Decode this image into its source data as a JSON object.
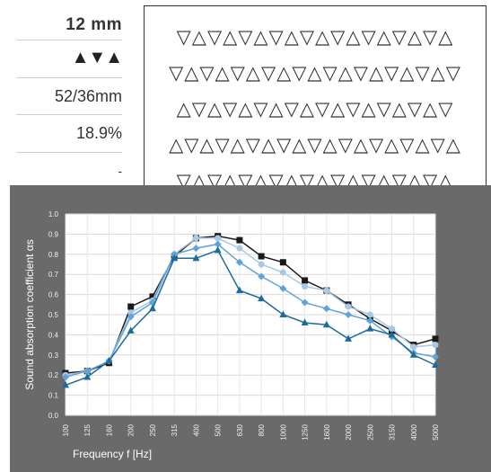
{
  "spec": {
    "thickness": "12  mm",
    "pattern_icon": "▲▼▲",
    "dimensions": "52/36mm",
    "open_area": "18.9%",
    "extra": "-"
  },
  "pattern": {
    "rows": [
      "▽△▽△▽△▽△▽△▽△▽△▽△▽△",
      "▽△▽△▽△▽△▽△▽△▽△▽△▽△▽",
      "△▽△▽△▽△▽△▽△▽△▽△▽△▽",
      "△▽△▽△▽△▽△▽△▽△▽△▽△▽△",
      "▽△▽△▽△▽△▽△▽△▽△▽△▽△"
    ]
  },
  "colors": {
    "panel_bg": "#6a6a6a",
    "plot_bg": "#ffffff",
    "series": [
      "#1a1a1a",
      "#a9c8e6",
      "#5fa3d8",
      "#1d6b9a"
    ]
  },
  "chart_data": {
    "type": "line",
    "xlabel": "Frequency f [Hz]",
    "ylabel": "Sound absorption coefficient αs",
    "ylim": [
      0,
      1
    ],
    "yticks": [
      "0.0",
      "0.1",
      "0.2",
      "0.3",
      "0.4",
      "0.5",
      "0.6",
      "0.7",
      "0.8",
      "0.9",
      "1.0"
    ],
    "categories": [
      "100",
      "125",
      "160",
      "200",
      "250",
      "315",
      "400",
      "500",
      "630",
      "800",
      "1000",
      "1250",
      "1600",
      "2000",
      "2500",
      "3150",
      "4000",
      "5000"
    ],
    "grid": true,
    "series": [
      {
        "marker": "square",
        "color": "#1a1a1a",
        "values": [
          0.21,
          0.22,
          0.26,
          0.54,
          0.59,
          0.79,
          0.88,
          0.89,
          0.87,
          0.79,
          0.76,
          0.67,
          0.62,
          0.55,
          0.48,
          0.42,
          0.35,
          0.38
        ]
      },
      {
        "marker": "circle",
        "color": "#a9c8e6",
        "values": [
          0.2,
          0.22,
          0.27,
          0.51,
          0.57,
          0.8,
          0.88,
          0.88,
          0.83,
          0.75,
          0.71,
          0.64,
          0.62,
          0.54,
          0.5,
          0.43,
          0.34,
          0.35
        ]
      },
      {
        "marker": "diamond",
        "color": "#5fa3d8",
        "values": [
          0.19,
          0.22,
          0.27,
          0.49,
          0.56,
          0.8,
          0.83,
          0.85,
          0.76,
          0.69,
          0.63,
          0.56,
          0.53,
          0.5,
          0.47,
          0.39,
          0.31,
          0.29
        ]
      },
      {
        "marker": "triangle",
        "color": "#1d6b9a",
        "values": [
          0.15,
          0.19,
          0.27,
          0.42,
          0.53,
          0.78,
          0.78,
          0.82,
          0.62,
          0.58,
          0.5,
          0.46,
          0.45,
          0.38,
          0.43,
          0.4,
          0.3,
          0.25
        ]
      }
    ]
  }
}
